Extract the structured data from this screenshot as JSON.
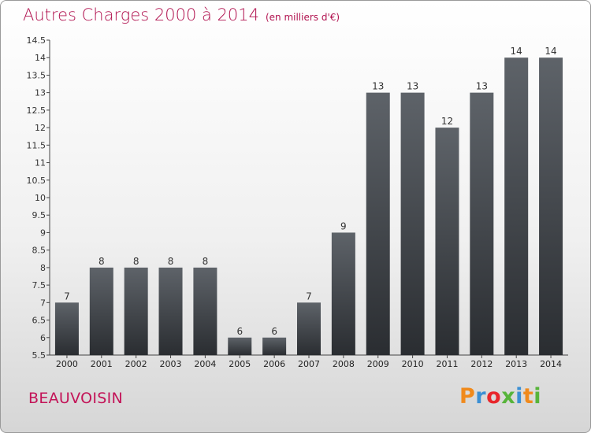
{
  "header": {
    "title": "Autres Charges 2000 à 2014",
    "subtitle": "(en milliers d'€)"
  },
  "footer": {
    "commune": "BEAUVOISIN",
    "logo_text": "Proxiti",
    "logo_colors": [
      "#f08a1c",
      "#3a8fd4",
      "#e8262b",
      "#57b43a",
      "#3a8fd4",
      "#f08a1c",
      "#57b43a"
    ]
  },
  "chart_data": {
    "type": "bar",
    "categories": [
      "2000",
      "2001",
      "2002",
      "2003",
      "2004",
      "2005",
      "2006",
      "2007",
      "2008",
      "2009",
      "2010",
      "2011",
      "2012",
      "2013",
      "2014"
    ],
    "values": [
      7,
      8,
      8,
      8,
      8,
      6,
      6,
      7,
      9,
      13,
      13,
      12,
      13,
      14,
      14
    ],
    "data_labels": [
      "7",
      "8",
      "8",
      "8",
      "8",
      "6",
      "6",
      "7",
      "9",
      "13",
      "13",
      "12",
      "13",
      "14",
      "14"
    ],
    "title": "Autres Charges 2000 à 2014",
    "subtitle": "(en milliers d'€)",
    "ylim": [
      5.5,
      14.5
    ],
    "yticks": [
      "5.5",
      "6",
      "6.5",
      "7",
      "7.5",
      "8",
      "8.5",
      "9",
      "9.5",
      "10",
      "10.5",
      "11",
      "11.5",
      "12",
      "12.5",
      "13",
      "13.5",
      "14",
      "14.5"
    ],
    "grid": false,
    "bar_color_top": "#5e6369",
    "bar_color_bottom": "#2a2d31"
  }
}
